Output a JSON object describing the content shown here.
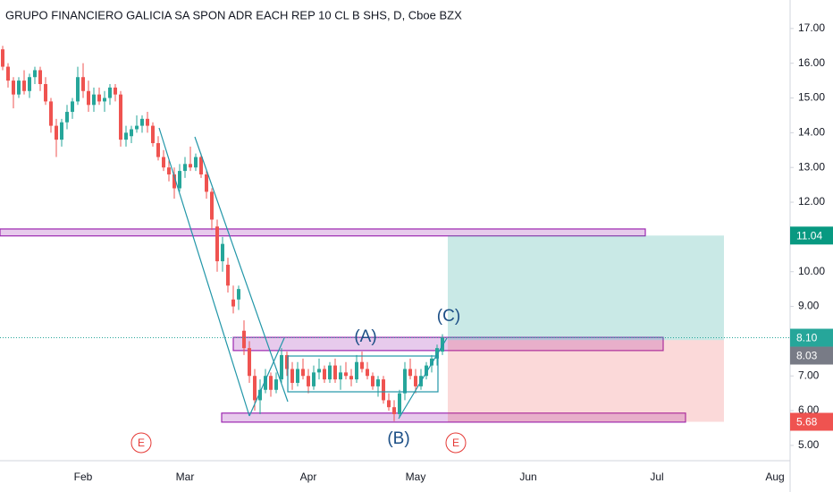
{
  "chart_data": {
    "type": "candlestick",
    "title": "GRUPO FINANCIERO GALICIA SA SPON ADR EACH REP 10 CL B SHS, D, Cboe BZX",
    "categories": [
      null,
      null,
      null,
      null,
      null,
      null,
      null,
      null,
      null,
      null,
      null,
      null,
      null,
      null,
      null,
      "Feb",
      null,
      null,
      null,
      null,
      null,
      null,
      null,
      null,
      null,
      null,
      null,
      null,
      null,
      null,
      null,
      null,
      null,
      null,
      "Mar",
      null,
      null,
      null,
      null,
      null,
      null,
      null,
      null,
      null,
      null,
      null,
      null,
      null,
      null,
      null,
      null,
      null,
      null,
      null,
      null,
      null,
      null,
      "Apr",
      null,
      null,
      null,
      null,
      null,
      null,
      null,
      null,
      null,
      null,
      null,
      null,
      null,
      null,
      null,
      null,
      null,
      null,
      null,
      "May",
      null,
      null,
      null,
      null,
      null,
      null,
      null,
      null,
      null,
      null,
      null,
      null,
      null,
      null,
      null,
      null,
      null,
      null,
      null,
      null,
      "Jun",
      null,
      null,
      null,
      null,
      null,
      null,
      null,
      null,
      null,
      null,
      null,
      null,
      null,
      null,
      null,
      null,
      null,
      null,
      null,
      null,
      null,
      null,
      null,
      "Jul",
      null,
      null,
      null,
      null,
      null,
      null,
      null,
      null,
      null,
      null,
      null,
      null,
      null,
      null,
      null,
      null,
      null,
      null,
      null,
      null,
      null,
      "Aug",
      null,
      null
    ],
    "open": [
      16.4,
      15.9,
      15.5,
      15.1,
      15.5,
      15.2,
      15.6,
      15.8,
      15.4,
      14.9,
      14.2,
      13.8,
      14.3,
      14.6,
      14.9,
      15.6,
      15.2,
      14.8,
      15.1,
      14.9,
      15.0,
      15.3,
      15.1,
      13.8,
      13.9,
      14.1,
      14.2,
      14.4,
      14.2,
      13.7,
      13.3,
      13.0,
      12.8,
      12.4,
      12.9,
      13.1,
      13.0,
      13.3,
      12.8,
      12.3,
      11.3,
      10.3,
      10.2,
      9.2,
      9.2,
      8.3,
      7.8,
      7.0,
      6.3,
      6.6,
      7.0,
      6.6,
      6.9,
      7.6,
      7.2,
      6.8,
      7.2,
      7.0,
      6.7,
      7.1,
      7.2,
      6.9,
      7.3,
      6.9,
      7.1,
      7.0,
      6.9,
      7.4,
      7.2,
      7.0,
      6.7,
      6.9,
      6.3,
      6.1,
      5.9,
      6.5,
      7.2,
      7.0,
      6.7,
      7.0,
      7.3,
      7.5,
      7.7,
      null,
      null,
      null,
      null,
      null,
      null,
      null,
      null,
      null,
      null,
      null,
      null,
      null,
      null,
      null,
      null,
      null,
      null,
      null,
      null,
      null,
      null,
      null,
      null,
      null,
      null,
      null,
      null,
      null,
      null,
      null,
      null,
      null,
      null,
      null,
      null,
      null,
      null,
      null,
      null,
      null,
      null,
      null,
      null,
      null,
      null,
      null,
      null,
      null,
      null,
      null,
      null,
      null,
      null,
      null,
      null,
      null,
      null,
      null,
      null,
      null,
      null,
      null,
      null
    ],
    "high": [
      16.5,
      16.0,
      15.6,
      15.6,
      15.8,
      15.7,
      15.9,
      15.9,
      15.6,
      15.0,
      14.4,
      14.4,
      14.8,
      15.0,
      15.9,
      16.0,
      15.5,
      15.3,
      15.3,
      15.2,
      15.4,
      15.4,
      15.2,
      14.2,
      14.2,
      14.5,
      14.5,
      14.6,
      14.3,
      13.9,
      13.5,
      13.2,
      13.0,
      13.1,
      13.3,
      13.6,
      13.4,
      13.4,
      12.9,
      12.4,
      11.5,
      11.0,
      10.4,
      9.6,
      9.6,
      8.6,
      8.0,
      7.2,
      6.9,
      7.2,
      7.1,
      7.1,
      7.8,
      7.7,
      7.4,
      7.4,
      7.5,
      7.2,
      7.3,
      7.5,
      7.3,
      7.4,
      7.5,
      7.3,
      7.4,
      7.2,
      7.6,
      7.7,
      7.4,
      7.1,
      7.0,
      7.0,
      6.5,
      6.3,
      6.6,
      7.4,
      7.5,
      7.2,
      7.2,
      7.4,
      7.6,
      7.9,
      8.2,
      null,
      null,
      null,
      null,
      null,
      null,
      null,
      null,
      null,
      null,
      null,
      null,
      null,
      null,
      null,
      null,
      null,
      null,
      null,
      null,
      null,
      null,
      null,
      null,
      null,
      null,
      null,
      null,
      null,
      null,
      null,
      null,
      null,
      null,
      null,
      null,
      null,
      null,
      null,
      null,
      null,
      null,
      null,
      null,
      null,
      null,
      null,
      null,
      null,
      null,
      null,
      null,
      null,
      null,
      null,
      null,
      null,
      null,
      null,
      null,
      null,
      null,
      null,
      null
    ],
    "low": [
      15.8,
      15.3,
      14.7,
      15.0,
      15.1,
      15.0,
      15.4,
      15.2,
      14.8,
      14.0,
      13.3,
      13.6,
      14.1,
      14.4,
      14.8,
      15.0,
      14.6,
      14.6,
      14.8,
      14.6,
      14.8,
      14.9,
      13.6,
      13.6,
      13.7,
      14.0,
      14.0,
      14.0,
      13.6,
      13.2,
      12.9,
      12.6,
      12.1,
      12.3,
      12.7,
      12.9,
      12.9,
      12.7,
      12.1,
      11.2,
      10.0,
      10.0,
      9.4,
      8.8,
      8.9,
      7.6,
      6.8,
      6.0,
      5.9,
      6.5,
      6.4,
      6.5,
      6.8,
      7.0,
      6.6,
      6.7,
      6.9,
      6.5,
      6.6,
      6.9,
      6.8,
      6.8,
      6.8,
      6.6,
      6.9,
      6.7,
      6.8,
      7.1,
      6.9,
      6.6,
      6.4,
      6.2,
      6.0,
      5.7,
      5.8,
      6.3,
      6.9,
      6.5,
      6.6,
      6.9,
      7.1,
      7.3,
      7.6,
      null,
      null,
      null,
      null,
      null,
      null,
      null,
      null,
      null,
      null,
      null,
      null,
      null,
      null,
      null,
      null,
      null,
      null,
      null,
      null,
      null,
      null,
      null,
      null,
      null,
      null,
      null,
      null,
      null,
      null,
      null,
      null,
      null,
      null,
      null,
      null,
      null,
      null,
      null,
      null,
      null,
      null,
      null,
      null,
      null,
      null,
      null,
      null,
      null,
      null,
      null,
      null,
      null,
      null,
      null,
      null,
      null,
      null,
      null,
      null,
      null,
      null,
      null,
      null
    ],
    "close": [
      15.9,
      15.5,
      15.1,
      15.5,
      15.2,
      15.6,
      15.8,
      15.4,
      14.9,
      14.2,
      13.8,
      14.3,
      14.6,
      14.9,
      15.6,
      15.2,
      14.8,
      15.1,
      14.9,
      15.0,
      15.3,
      15.1,
      13.8,
      14.0,
      14.1,
      14.2,
      14.4,
      14.2,
      13.7,
      13.3,
      13.0,
      12.8,
      12.4,
      12.9,
      13.1,
      13.0,
      13.3,
      12.8,
      12.3,
      11.5,
      10.3,
      10.8,
      9.6,
      9.0,
      9.5,
      7.8,
      7.0,
      6.3,
      6.6,
      7.0,
      6.6,
      6.9,
      7.6,
      7.2,
      6.8,
      7.2,
      7.0,
      6.7,
      7.1,
      7.2,
      6.9,
      7.3,
      6.9,
      7.1,
      7.0,
      6.9,
      7.4,
      7.2,
      7.0,
      6.7,
      6.9,
      6.3,
      6.1,
      5.9,
      6.5,
      7.2,
      7.0,
      6.7,
      7.0,
      7.3,
      7.5,
      7.8,
      8.1,
      null,
      null,
      null,
      null,
      null,
      null,
      null,
      null,
      null,
      null,
      null,
      null,
      null,
      null,
      null,
      null,
      null,
      null,
      null,
      null,
      null,
      null,
      null,
      null,
      null,
      null,
      null,
      null,
      null,
      null,
      null,
      null,
      null,
      null,
      null,
      null,
      null,
      null,
      null,
      null,
      null,
      null,
      null,
      null,
      null,
      null,
      null,
      null,
      null,
      null,
      null,
      null,
      null,
      null,
      null,
      null,
      null,
      null,
      null,
      null,
      null,
      null,
      null,
      null
    ],
    "up_color": "#26a69a",
    "down_color": "#ef5350",
    "ylim": [
      4.56,
      17.82
    ],
    "yticks": [
      {
        "value": 5,
        "label": "5.00"
      },
      {
        "value": 6,
        "label": "6.00"
      },
      {
        "value": 7,
        "label": "7.00"
      },
      {
        "value": 8,
        "label": "8.00"
      },
      {
        "value": 9,
        "label": "9.00"
      },
      {
        "value": 10,
        "label": "10.00"
      },
      {
        "value": 11,
        "label": "11.00"
      },
      {
        "value": 12,
        "label": "12.00"
      },
      {
        "value": 13,
        "label": "13.00"
      },
      {
        "value": 14,
        "label": "14.00"
      },
      {
        "value": 15,
        "label": "15.00"
      },
      {
        "value": 16,
        "label": "16.00"
      },
      {
        "value": 17,
        "label": "17.00"
      }
    ],
    "grid": false,
    "last_price": {
      "value": 8.1,
      "label": "8.10"
    },
    "position": {
      "target": 11.04,
      "entry": 8.03,
      "stop": 5.68
    },
    "zones": [
      {
        "top": 11.23,
        "bottom": 11.03
      },
      {
        "top": 8.11,
        "bottom": 7.73
      },
      {
        "top": 5.93,
        "bottom": 5.67
      }
    ],
    "annotations": [
      "(A)",
      "(B)",
      "(C)",
      "E",
      "E"
    ]
  }
}
